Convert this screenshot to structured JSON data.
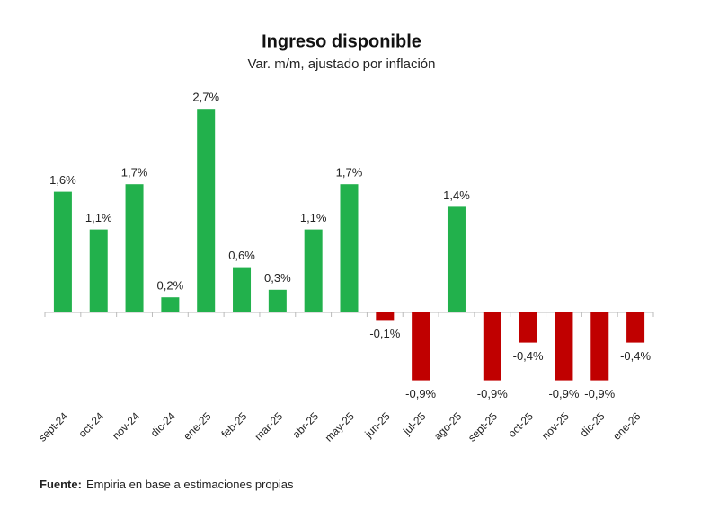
{
  "chart_data": {
    "type": "bar",
    "title": "Ingreso disponible",
    "subtitle": "Var. m/m, ajustado por inflación",
    "categories": [
      "sept-24",
      "oct-24",
      "nov-24",
      "dic-24",
      "ene-25",
      "feb-25",
      "mar-25",
      "abr-25",
      "may-25",
      "jun-25",
      "jul-25",
      "ago-25",
      "sept-25",
      "oct-25",
      "nov-25",
      "dic-25",
      "ene-26"
    ],
    "values": [
      1.6,
      1.1,
      1.7,
      0.2,
      2.7,
      0.6,
      0.3,
      1.1,
      1.7,
      -0.1,
      -0.9,
      1.4,
      -0.9,
      -0.4,
      -0.9,
      -0.9,
      -0.4
    ],
    "value_labels": [
      "1,6%",
      "1,1%",
      "1,7%",
      "0,2%",
      "2,7%",
      "0,6%",
      "0,3%",
      "1,1%",
      "1,7%",
      "-0,1%",
      "-0,9%",
      "1,4%",
      "-0,9%",
      "-0,4%",
      "-0,9%",
      "-0,9%",
      "-0,4%"
    ],
    "color_positive": "#22b14c",
    "color_negative": "#c00000",
    "source_label": "Fuente:",
    "source": "Empiria en base a estimaciones propias"
  }
}
